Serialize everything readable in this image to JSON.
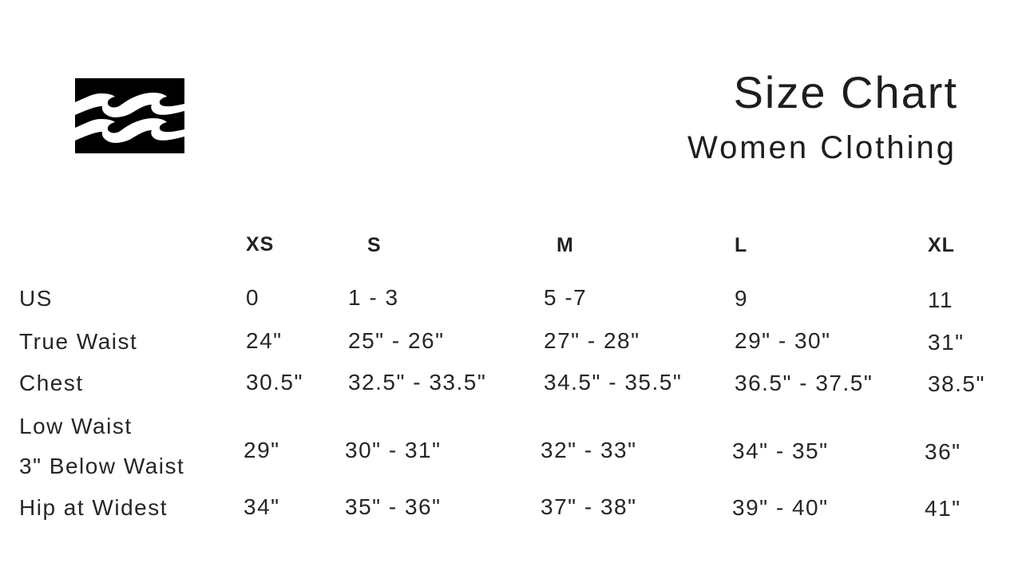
{
  "brand": {
    "logo": "Billabong wave logo"
  },
  "header": {
    "title": "Size Chart",
    "subtitle": "Women Clothing"
  },
  "table": {
    "columns": [
      "XS",
      "S",
      "M",
      "L",
      "XL"
    ],
    "rows": [
      {
        "label": "US",
        "values": [
          "0",
          "1 - 3",
          "5 -7",
          "9",
          "11"
        ]
      },
      {
        "label": "True Waist",
        "values": [
          "24\"",
          "25\" - 26\"",
          "27\" - 28\"",
          "29\" - 30\"",
          "31\""
        ]
      },
      {
        "label": "Chest",
        "values": [
          "30.5\"",
          "32.5\" - 33.5\"",
          "34.5\" - 35.5\"",
          "36.5\" - 37.5\"",
          "38.5\""
        ]
      },
      {
        "label": "Low Waist",
        "label2": "3\" Below Waist",
        "values": [
          "29\"",
          "30\" - 31\"",
          "32\" - 33\"",
          "34\" - 35\"",
          "36\""
        ]
      },
      {
        "label": "Hip at Widest",
        "values": [
          "34\"",
          "35\" - 36\"",
          "37\" - 38\"",
          "39\" - 40\"",
          "41\""
        ]
      }
    ]
  }
}
